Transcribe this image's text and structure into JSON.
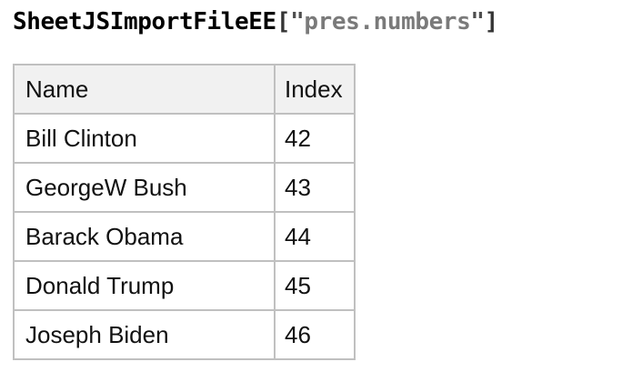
{
  "title": {
    "sheet": "SheetJSImportFileEE",
    "open_bracket": "[",
    "open_quote": "\"",
    "file": "pres.numbers",
    "close_quote": "\"",
    "close_bracket": "]"
  },
  "table": {
    "headers": [
      "Name",
      "Index"
    ],
    "rows": [
      {
        "name": "Bill Clinton",
        "index": "42"
      },
      {
        "name": "GeorgeW Bush",
        "index": "43"
      },
      {
        "name": "Barack Obama",
        "index": "44"
      },
      {
        "name": "Donald Trump",
        "index": "45"
      },
      {
        "name": "Joseph Biden",
        "index": "46"
      }
    ]
  },
  "colors": {
    "title_text": "#000000",
    "title_punctuation": "#343434",
    "title_quote": "#4e4e4e",
    "title_string": "#7a7a7a",
    "header_background": "#f1f1f1",
    "table_border": "#c0c0c0",
    "cell_text": "#111111",
    "page_background": "#ffffff"
  }
}
